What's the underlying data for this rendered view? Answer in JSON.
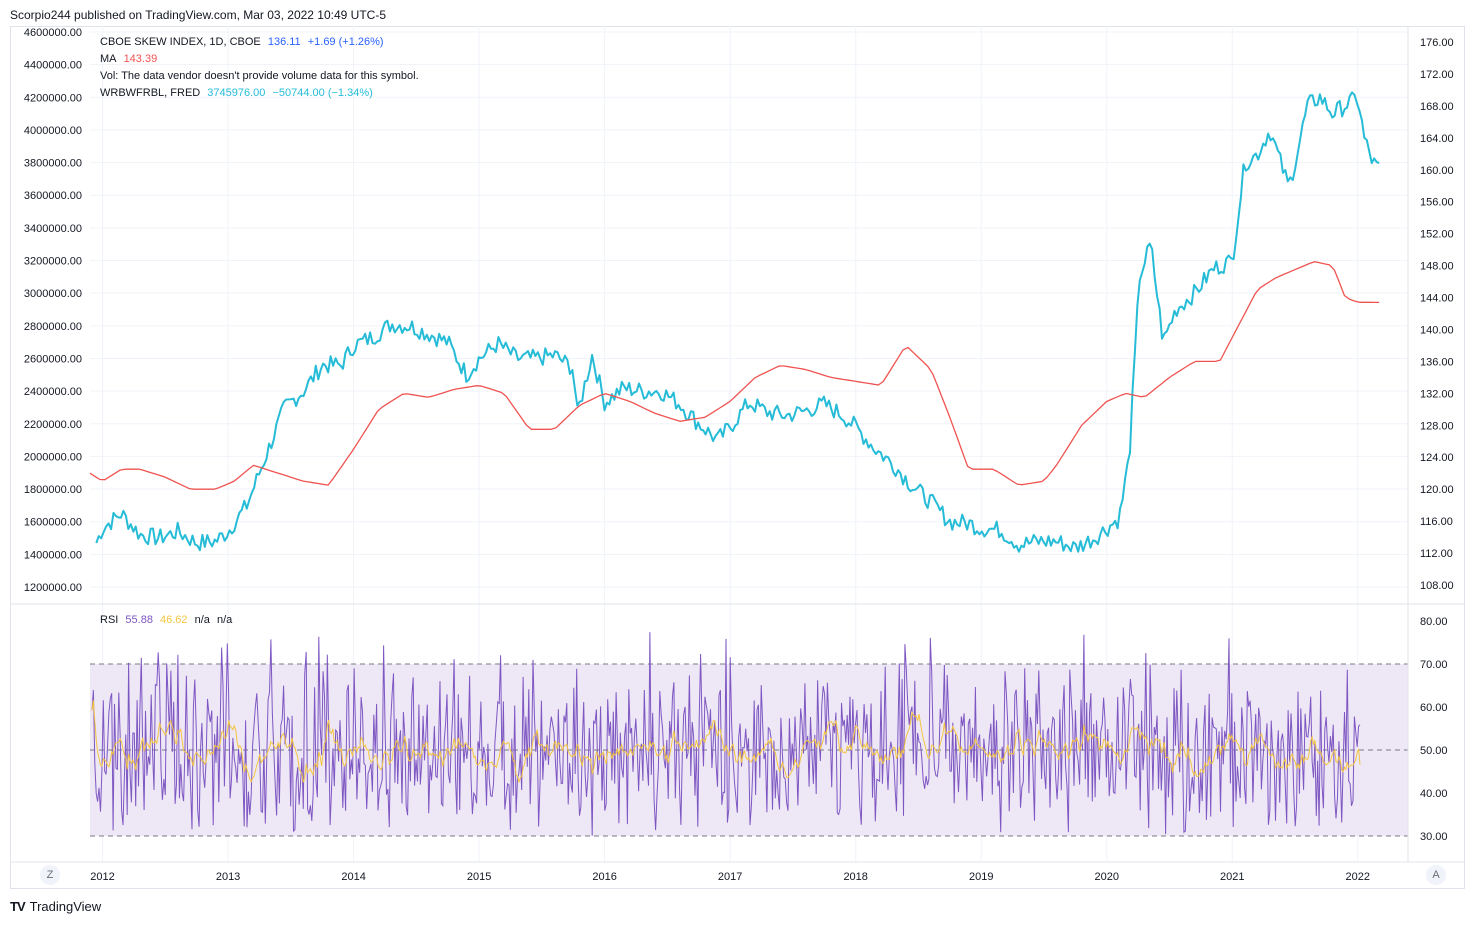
{
  "publisher_line": "Scorpio244 published on TradingView.com, Mar 03, 2022 10:49 UTC-5",
  "brand": {
    "logo": "TV",
    "name": "TradingView"
  },
  "legend": {
    "skew": {
      "name": "CBOE SKEW INDEX, 1D, CBOE",
      "value": "136.11",
      "change": "+1.69 (+1.26%)"
    },
    "ma": {
      "name": "MA",
      "value": "143.39"
    },
    "vol": {
      "text": "Vol: The data vendor doesn't provide volume data for this symbol."
    },
    "fred": {
      "name": "WRBWFRBL, FRED",
      "value": "3745976.00",
      "change": "−50744.00 (−1.34%)"
    },
    "rsi": {
      "name": "RSI",
      "value1": "55.88",
      "value2": "46.62",
      "na1": "n/a",
      "na2": "n/a"
    }
  },
  "buttons": {
    "left": "Z",
    "right": "A"
  },
  "colors": {
    "cyan": "#26bcd7",
    "red": "#ef5350",
    "blue": "#2962ff",
    "purple": "#7e57c2",
    "yellow": "#f4c542",
    "band": "#ede7f6",
    "grid": "#f0f3fa",
    "axis": "#e0e3eb",
    "dashed": "#787b86"
  },
  "chart_data": [
    {
      "type": "line",
      "title": "CBOE SKEW INDEX / WRBWFRBL",
      "xlim": [
        2011.9,
        2022.4
      ],
      "x_ticks": [
        "2012",
        "2013",
        "2014",
        "2015",
        "2016",
        "2017",
        "2018",
        "2019",
        "2020",
        "2021",
        "2022"
      ],
      "left_axis": {
        "ylim": [
          1100000,
          4620000
        ],
        "ticks": [
          "4600000.00",
          "4400000.00",
          "4200000.00",
          "4000000.00",
          "3800000.00",
          "3600000.00",
          "3400000.00",
          "3200000.00",
          "3000000.00",
          "2800000.00",
          "2600000.00",
          "2400000.00",
          "2200000.00",
          "2000000.00",
          "1800000.00",
          "1600000.00",
          "1400000.00",
          "1200000.00"
        ]
      },
      "right_axis": {
        "ylim": [
          107,
          177
        ],
        "ticks": [
          "176.00",
          "172.00",
          "168.00",
          "164.00",
          "160.00",
          "156.00",
          "152.00",
          "148.00",
          "144.00",
          "140.00",
          "136.00",
          "132.00",
          "128.00",
          "124.00",
          "120.00",
          "116.00",
          "112.00",
          "108.00"
        ]
      },
      "series": [
        {
          "name": "WRBWFRBL",
          "axis": "left",
          "color": "cyan",
          "x": [
            2011.95,
            2012.0,
            2012.15,
            2012.3,
            2012.45,
            2012.6,
            2012.75,
            2012.9,
            2013.0,
            2013.15,
            2013.3,
            2013.45,
            2013.6,
            2013.75,
            2013.9,
            2014.0,
            2014.15,
            2014.3,
            2014.45,
            2014.6,
            2014.75,
            2014.9,
            2015.0,
            2015.15,
            2015.3,
            2015.45,
            2015.6,
            2015.75,
            2015.78,
            2015.9,
            2016.0,
            2016.15,
            2016.3,
            2016.45,
            2016.6,
            2016.75,
            2016.9,
            2017.0,
            2017.15,
            2017.3,
            2017.45,
            2017.6,
            2017.75,
            2017.9,
            2018.0,
            2018.15,
            2018.3,
            2018.45,
            2018.6,
            2018.75,
            2018.9,
            2019.0,
            2019.15,
            2019.3,
            2019.45,
            2019.6,
            2019.75,
            2019.9,
            2020.0,
            2020.1,
            2020.18,
            2020.26,
            2020.35,
            2020.45,
            2020.55,
            2020.7,
            2020.85,
            2021.0,
            2021.1,
            2021.2,
            2021.3,
            2021.45,
            2021.5,
            2021.6,
            2021.7,
            2021.8,
            2021.9,
            2022.0,
            2022.05,
            2022.12,
            2022.17
          ],
          "values": [
            1470000,
            1560000,
            1650000,
            1520000,
            1500000,
            1540000,
            1470000,
            1480000,
            1540000,
            1700000,
            2000000,
            2300000,
            2400000,
            2560000,
            2560000,
            2680000,
            2730000,
            2810000,
            2800000,
            2750000,
            2700000,
            2500000,
            2600000,
            2690000,
            2600000,
            2600000,
            2620000,
            2540000,
            2250000,
            2620000,
            2330000,
            2420000,
            2400000,
            2400000,
            2320000,
            2200000,
            2100000,
            2180000,
            2330000,
            2270000,
            2250000,
            2280000,
            2320000,
            2250000,
            2180000,
            2050000,
            1950000,
            1820000,
            1720000,
            1600000,
            1590000,
            1560000,
            1550000,
            1460000,
            1480000,
            1480000,
            1440000,
            1500000,
            1560000,
            1620000,
            2000000,
            3100000,
            3300000,
            2700000,
            2900000,
            3000000,
            3150000,
            3200000,
            3800000,
            3850000,
            4000000,
            3650000,
            3800000,
            4150000,
            4200000,
            4100000,
            4150000,
            4200000,
            3950000,
            3800000,
            3760000
          ]
        },
        {
          "name": "MA",
          "axis": "right",
          "color": "red",
          "x": [
            2011.9,
            2012.0,
            2012.15,
            2012.3,
            2012.5,
            2012.7,
            2012.9,
            2013.05,
            2013.2,
            2013.4,
            2013.6,
            2013.8,
            2014.0,
            2014.2,
            2014.4,
            2014.6,
            2014.8,
            2015.0,
            2015.2,
            2015.4,
            2015.6,
            2015.8,
            2016.0,
            2016.2,
            2016.4,
            2016.6,
            2016.8,
            2017.0,
            2017.2,
            2017.4,
            2017.6,
            2017.8,
            2018.0,
            2018.2,
            2018.4,
            2018.6,
            2018.75,
            2018.9,
            2019.1,
            2019.3,
            2019.5,
            2019.6,
            2019.8,
            2019.9,
            2020.0,
            2020.15,
            2020.3,
            2020.5,
            2020.7,
            2020.9,
            2021.0,
            2021.2,
            2021.35,
            2021.5,
            2021.65,
            2021.8,
            2021.9,
            2022.0,
            2022.05,
            2022.17
          ],
          "values": [
            122,
            121,
            122.5,
            122.5,
            121.5,
            120,
            120,
            121,
            123,
            122,
            121,
            120.5,
            125,
            130,
            132,
            131.5,
            132.5,
            133,
            132,
            127.5,
            127.5,
            130.5,
            132,
            131,
            129.5,
            128.5,
            129,
            131,
            134,
            135.5,
            135,
            134,
            133.5,
            133,
            138,
            135,
            129,
            122.5,
            122.5,
            120.5,
            121,
            123,
            128,
            129.5,
            131,
            132,
            131.5,
            134,
            136,
            136,
            139,
            145,
            146.5,
            147.5,
            148.5,
            148,
            144,
            143.4,
            143.4,
            143.39
          ]
        }
      ]
    },
    {
      "type": "line",
      "title": "RSI",
      "xlim": [
        2011.9,
        2022.4
      ],
      "ylim": [
        27,
        82
      ],
      "ticks": [
        "80.00",
        "70.00",
        "60.00",
        "50.00",
        "40.00",
        "30.00"
      ],
      "bands": {
        "upper": 70,
        "middle": 50,
        "lower": 30
      },
      "series": [
        {
          "name": "RSI",
          "color": "purple",
          "last": 55.88
        },
        {
          "name": "RSI MA",
          "color": "yellow",
          "last": 46.62
        }
      ]
    }
  ]
}
